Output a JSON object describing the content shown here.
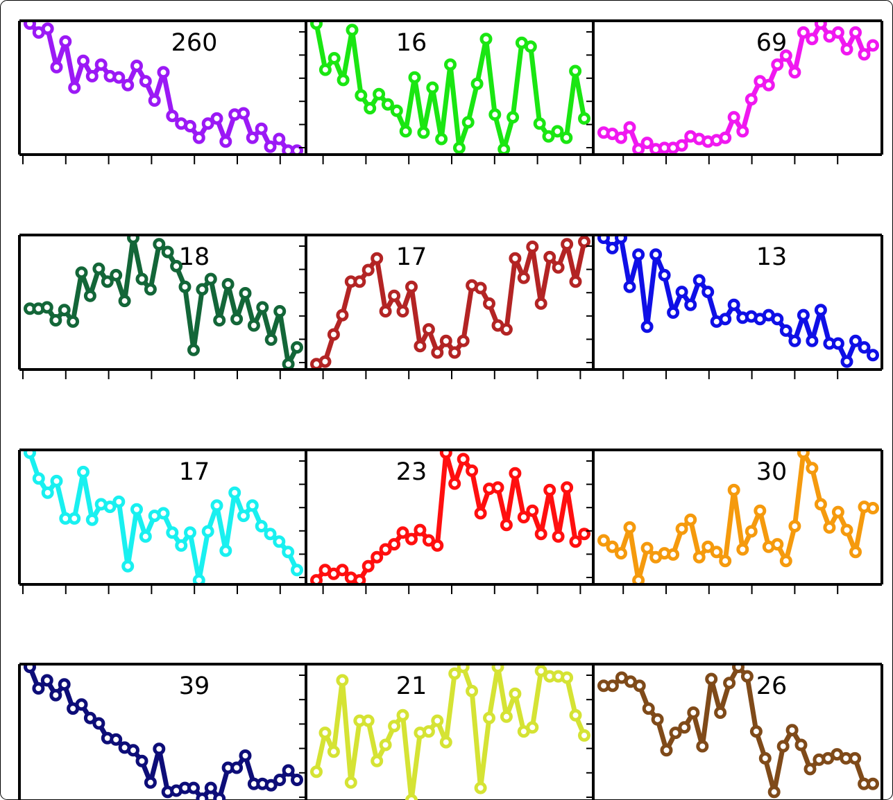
{
  "chart_data": [
    {
      "type": "line",
      "title": "260",
      "color": "#9b19f5",
      "values": [
        100,
        93,
        96,
        66,
        86,
        50,
        71,
        59,
        68,
        59,
        58,
        52,
        67,
        55,
        40,
        62,
        28,
        22,
        20,
        11,
        22,
        26,
        8,
        29,
        30,
        11,
        18,
        4,
        10,
        1,
        1
      ]
    },
    {
      "type": "line",
      "title": "16",
      "color": "#1ae612",
      "values": [
        100,
        64,
        73,
        56,
        95,
        44,
        34,
        45,
        37,
        32,
        16,
        58,
        15,
        50,
        10,
        68,
        3,
        23,
        53,
        88,
        29,
        2,
        27,
        85,
        82,
        22,
        12,
        16,
        11,
        63,
        26
      ]
    },
    {
      "type": "line",
      "title": "69",
      "color": "#f018f0",
      "values": [
        15,
        14,
        11,
        19,
        2,
        7,
        2,
        3,
        3,
        5,
        12,
        10,
        8,
        9,
        11,
        27,
        16,
        41,
        55,
        52,
        68,
        75,
        62,
        93,
        88,
        100,
        90,
        93,
        80,
        93,
        76,
        83
      ]
    },
    {
      "type": "line",
      "title": "18",
      "color": "#136638",
      "values": [
        45,
        45,
        46,
        36,
        44,
        35,
        73,
        55,
        76,
        66,
        71,
        51,
        100,
        68,
        60,
        95,
        89,
        78,
        62,
        13,
        60,
        68,
        36,
        64,
        37,
        57,
        32,
        46,
        21,
        43,
        2,
        15
      ]
    },
    {
      "type": "line",
      "title": "17",
      "color": "#b32424",
      "values": [
        2,
        4,
        25,
        40,
        66,
        66,
        75,
        84,
        43,
        55,
        43,
        62,
        16,
        29,
        11,
        20,
        11,
        20,
        63,
        61,
        49,
        32,
        29,
        84,
        69,
        93,
        49,
        85,
        77,
        95,
        66,
        97
      ]
    },
    {
      "type": "line",
      "title": "13",
      "color": "#0f0fe6",
      "values": [
        100,
        92,
        100,
        62,
        87,
        31,
        87,
        71,
        42,
        58,
        48,
        67,
        58,
        35,
        37,
        48,
        38,
        39,
        37,
        40,
        37,
        28,
        20,
        40,
        20,
        44,
        18,
        18,
        4,
        20,
        15,
        9
      ]
    },
    {
      "type": "line",
      "title": "17",
      "color": "#19f0f0",
      "values": [
        100,
        80,
        69,
        78,
        49,
        49,
        85,
        48,
        60,
        58,
        62,
        12,
        56,
        35,
        51,
        53,
        38,
        28,
        38,
        1,
        39,
        59,
        24,
        69,
        51,
        59,
        43,
        37,
        31,
        23,
        9
      ]
    },
    {
      "type": "line",
      "title": "23",
      "color": "#ff0f0f",
      "values": [
        1,
        9,
        6,
        9,
        3,
        1,
        12,
        19,
        25,
        29,
        38,
        33,
        40,
        32,
        28,
        100,
        76,
        95,
        86,
        53,
        72,
        73,
        44,
        84,
        50,
        55,
        37,
        71,
        35,
        73,
        31,
        37
      ]
    },
    {
      "type": "line",
      "title": "30",
      "color": "#f59a0d",
      "values": [
        32,
        27,
        22,
        42,
        1,
        26,
        19,
        22,
        21,
        41,
        48,
        19,
        27,
        23,
        16,
        71,
        25,
        39,
        55,
        27,
        29,
        16,
        43,
        100,
        88,
        60,
        42,
        54,
        40,
        23,
        58,
        57
      ]
    },
    {
      "type": "line",
      "title": "39",
      "color": "#0d0d78",
      "values": [
        100,
        84,
        90,
        79,
        87,
        69,
        72,
        62,
        58,
        47,
        46,
        40,
        38,
        30,
        14,
        39,
        7,
        8,
        10,
        10,
        2,
        10,
        2,
        25,
        25,
        34,
        13,
        13,
        12,
        16,
        23,
        16
      ]
    },
    {
      "type": "line",
      "title": "21",
      "color": "#d5e334",
      "values": [
        22,
        51,
        37,
        90,
        14,
        60,
        60,
        30,
        42,
        56,
        64,
        1,
        51,
        52,
        60,
        44,
        95,
        100,
        82,
        10,
        62,
        100,
        63,
        80,
        52,
        55,
        97,
        93,
        93,
        92,
        64,
        49
      ]
    },
    {
      "type": "line",
      "title": "26",
      "color": "#7f4a19",
      "values": [
        86,
        86,
        92,
        89,
        86,
        69,
        61,
        38,
        51,
        55,
        66,
        41,
        91,
        66,
        88,
        100,
        93,
        52,
        32,
        7,
        41,
        53,
        42,
        24,
        31,
        32,
        35,
        32,
        32,
        13,
        13
      ]
    }
  ]
}
